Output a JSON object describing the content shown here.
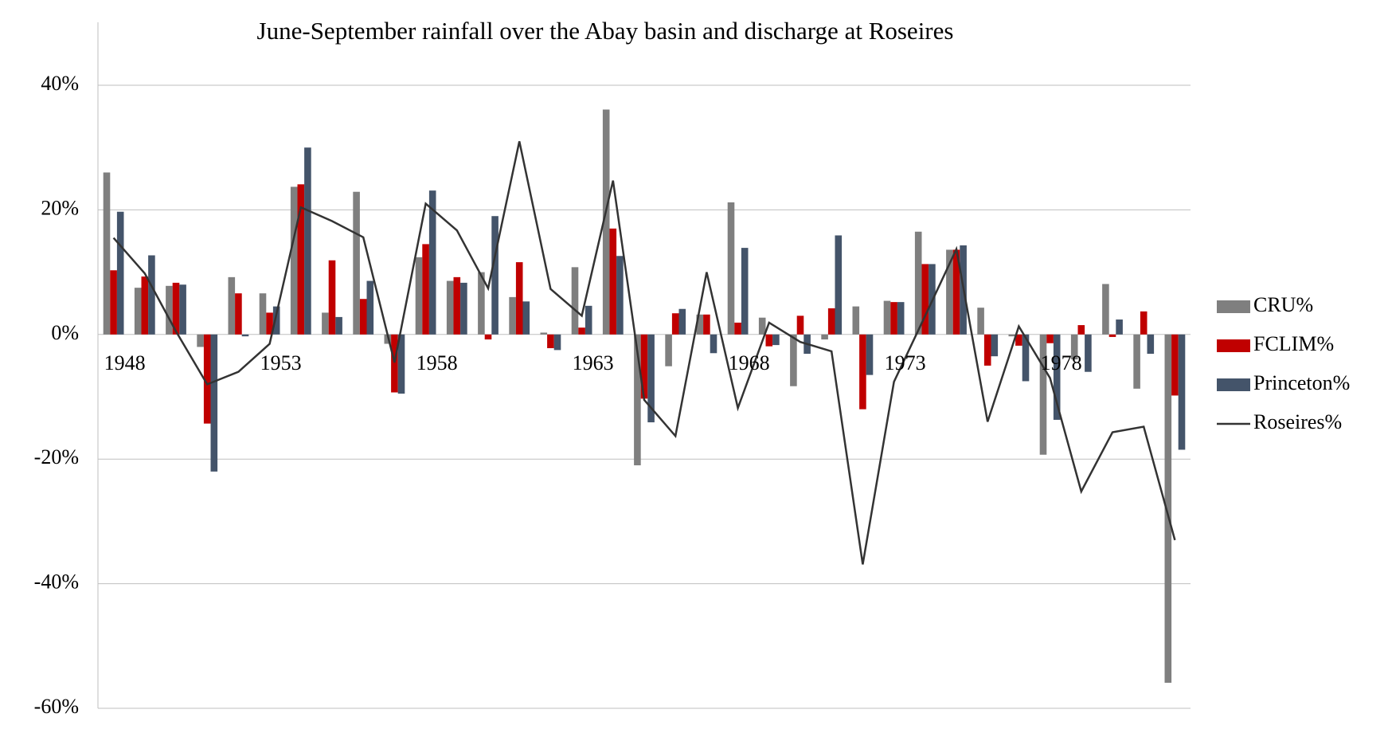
{
  "chart_data": {
    "type": "bar",
    "title": "June-September rainfall over the Abay basin and discharge at Roseires",
    "categories": [
      "1948",
      null,
      null,
      null,
      null,
      "1953",
      null,
      null,
      null,
      null,
      "1958",
      null,
      null,
      null,
      null,
      "1963",
      null,
      null,
      null,
      null,
      "1968",
      null,
      null,
      null,
      null,
      "1973",
      null,
      null,
      null,
      null,
      "1978",
      null,
      null,
      null,
      null
    ],
    "series": [
      {
        "name": "CRU%",
        "type": "bar",
        "color": "#7f7f7f",
        "values": [
          26,
          7.5,
          7.8,
          -2,
          9.2,
          6.6,
          23.7,
          3.5,
          22.9,
          -1.5,
          12.4,
          8.6,
          10,
          6,
          0.3,
          10.8,
          36.1,
          -21,
          -5.1,
          3.2,
          21.2,
          2.7,
          -8.3,
          -0.8,
          4.5,
          5.4,
          16.5,
          13.6,
          4.3,
          -0.3,
          -19.3,
          -4,
          8.1,
          -8.7,
          -55.9
        ]
      },
      {
        "name": "FCLIM%",
        "type": "bar",
        "color": "#c00000",
        "values": [
          10.3,
          9.3,
          8.3,
          -14.3,
          6.6,
          3.5,
          24.1,
          11.9,
          5.7,
          -9.3,
          14.5,
          9.2,
          -0.8,
          11.6,
          -2.2,
          1.1,
          17,
          -10.3,
          3.4,
          3.2,
          1.9,
          -1.9,
          3,
          4.2,
          -12,
          5.2,
          11.3,
          13.6,
          -5,
          -1.8,
          -1.4,
          1.5,
          -0.4,
          3.7,
          -9.8
        ]
      },
      {
        "name": "Princeton%",
        "type": "bar",
        "color": "#44546a",
        "values": [
          19.7,
          12.7,
          8,
          -22,
          -0.3,
          4.5,
          30,
          2.8,
          8.6,
          -9.5,
          23.1,
          8.3,
          19,
          5.3,
          -2.5,
          4.6,
          12.6,
          -14.1,
          4.1,
          -3,
          13.9,
          -1.7,
          -3.1,
          15.9,
          -6.5,
          5.2,
          11.3,
          14.3,
          -3.5,
          -7.5,
          -13.7,
          -6,
          2.4,
          -3.1,
          -18.5
        ]
      },
      {
        "name": "Roseires%",
        "type": "line",
        "color": "#333333",
        "values": [
          15.5,
          9.8,
          0.5,
          -8,
          -6,
          -1.5,
          20.4,
          18.2,
          15.6,
          -4.5,
          21,
          16.7,
          7.4,
          31,
          7.3,
          3,
          24.7,
          -10.5,
          -16.3,
          10,
          -11.8,
          1.9,
          -1.2,
          -2.7,
          -36.9,
          -7.6,
          3,
          13.7,
          -14,
          1.3,
          -7,
          -25.2,
          -15.7,
          -14.8,
          -33
        ]
      }
    ],
    "ylim": [
      -60,
      40
    ],
    "yticks": [
      {
        "value": -60,
        "label": "-60%"
      },
      {
        "value": -40,
        "label": "-40%"
      },
      {
        "value": -20,
        "label": "-20%"
      },
      {
        "value": 0,
        "label": "0%"
      },
      {
        "value": 20,
        "label": "20%"
      },
      {
        "value": 40,
        "label": "40%"
      }
    ],
    "grid": true,
    "legend": "right"
  }
}
